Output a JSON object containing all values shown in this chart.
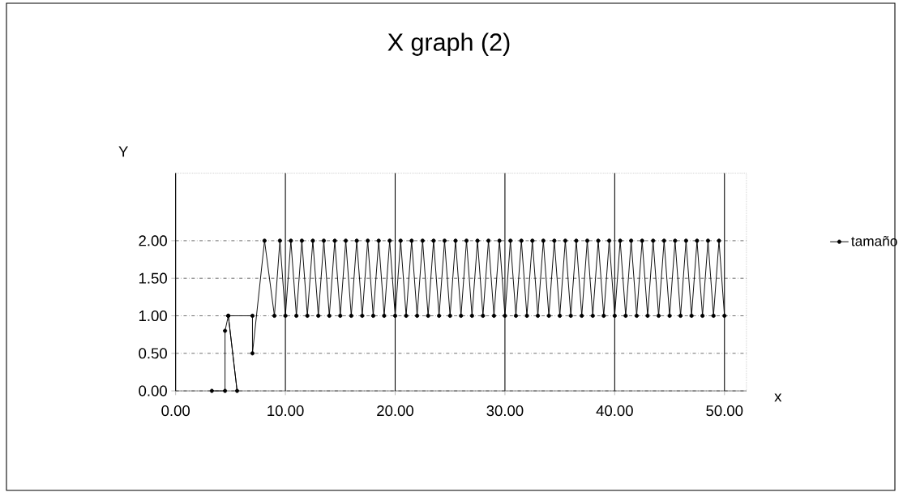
{
  "chart_data": {
    "type": "line",
    "title": "X graph (2)",
    "xlabel": "x",
    "ylabel": "Y",
    "xlim": [
      0,
      52
    ],
    "ylim": [
      0,
      2.9
    ],
    "xticks": [
      {
        "value": 0,
        "label": "0.00"
      },
      {
        "value": 10,
        "label": "10.00"
      },
      {
        "value": 20,
        "label": "20.00"
      },
      {
        "value": 30,
        "label": "30.00"
      },
      {
        "value": 40,
        "label": "40.00"
      },
      {
        "value": 50,
        "label": "50.00"
      }
    ],
    "yticks": [
      {
        "value": 0,
        "label": "0.00"
      },
      {
        "value": 0.5,
        "label": "0.50"
      },
      {
        "value": 1,
        "label": "1.00"
      },
      {
        "value": 1.5,
        "label": "1.50"
      },
      {
        "value": 2,
        "label": "2.00"
      }
    ],
    "grid": true,
    "legend": "right",
    "marker": "circle",
    "line_style": "solid",
    "series": [
      {
        "name": "tamaño",
        "color": "#000000",
        "x": [
          3.3,
          4.5,
          4.5,
          4.8,
          5.6,
          4.8,
          7.0,
          7.0,
          8.1,
          9,
          9.5,
          10,
          10.5,
          11,
          11.5,
          12,
          12.5,
          13,
          13.5,
          14,
          14.5,
          15,
          15.5,
          16,
          16.5,
          17,
          17.5,
          18,
          18.5,
          19,
          19.5,
          20,
          20.5,
          21,
          21.5,
          22,
          22.5,
          23,
          23.5,
          24,
          24.5,
          25,
          25.5,
          26,
          26.5,
          27,
          27.5,
          28,
          28.5,
          29,
          29.5,
          30,
          30.5,
          31,
          31.5,
          32,
          32.5,
          33,
          33.5,
          34,
          34.5,
          35,
          35.5,
          36,
          36.5,
          37,
          37.5,
          38,
          38.5,
          39,
          39.5,
          40,
          40.5,
          41,
          41.5,
          42,
          42.5,
          43,
          43.5,
          44,
          44.5,
          45,
          45.5,
          46,
          46.5,
          47,
          47.5,
          48,
          48.5,
          49,
          49.5,
          50
        ],
        "values": [
          0,
          0,
          0.8,
          1.0,
          0,
          1.0,
          1.0,
          0.5,
          2.0,
          1,
          2,
          1,
          2,
          1,
          2,
          1,
          2,
          1,
          2,
          1,
          2,
          1,
          2,
          1,
          2,
          1,
          2,
          1,
          2,
          1,
          2,
          1,
          2,
          1,
          2,
          1,
          2,
          1,
          2,
          1,
          2,
          1,
          2,
          1,
          2,
          1,
          2,
          1,
          2,
          1,
          2,
          1,
          2,
          1,
          2,
          1,
          2,
          1,
          2,
          1,
          2,
          1,
          2,
          1,
          2,
          1,
          2,
          1,
          2,
          1,
          2,
          1,
          2,
          1,
          2,
          1,
          2,
          1,
          2,
          1,
          2,
          1,
          2,
          1,
          2,
          1,
          2,
          1,
          2,
          1,
          2,
          1
        ]
      }
    ]
  }
}
